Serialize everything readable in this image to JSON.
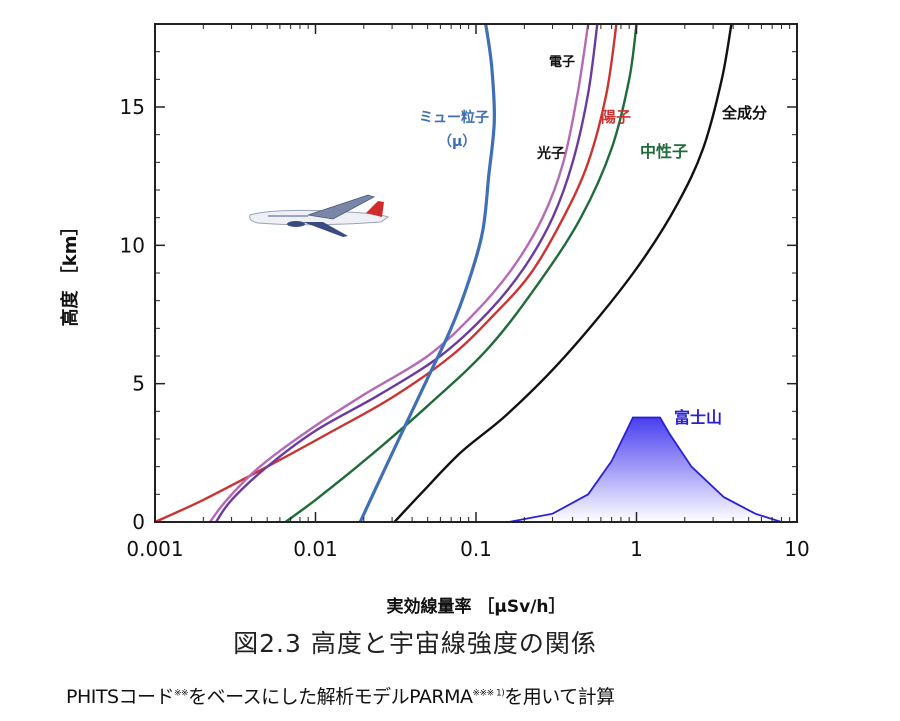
{
  "chart_data": {
    "type": "line",
    "title": "図2.3 高度と宇宙線強度の関係",
    "xlabel": "実効線量率 ［μSv/h］",
    "ylabel": "高度 ［km］",
    "xscale": "log",
    "xlim": [
      0.001,
      10
    ],
    "ylim": [
      0,
      18
    ],
    "x_tick_labels": [
      "0.001",
      "0.01",
      "0.1",
      "1",
      "10"
    ],
    "x_tick_values": [
      0.001,
      0.01,
      0.1,
      1,
      10
    ],
    "y_tick_labels": [
      "0",
      "5",
      "10",
      "15"
    ],
    "y_tick_values": [
      0,
      5,
      10,
      15
    ],
    "series": [
      {
        "name": "全成分",
        "color": "#111111",
        "x": [
          0.031,
          0.045,
          0.08,
          0.15,
          0.3,
          0.6,
          1.1,
          1.8,
          2.6,
          3.4,
          3.9
        ],
        "y": [
          0,
          1.0,
          2.5,
          3.8,
          5.5,
          7.5,
          9.5,
          11.5,
          13.5,
          16.0,
          18.0
        ]
      },
      {
        "name": "中性子",
        "color": "#1f6b3a",
        "x": [
          0.0065,
          0.01,
          0.02,
          0.05,
          0.12,
          0.25,
          0.45,
          0.7,
          0.9,
          1.0
        ],
        "y": [
          0,
          0.8,
          2.2,
          4.2,
          6.3,
          8.7,
          11.0,
          13.5,
          16.0,
          18.0
        ]
      },
      {
        "name": "陽子",
        "color": "#cc3333",
        "x": [
          0.001,
          0.002,
          0.005,
          0.012,
          0.03,
          0.07,
          0.13,
          0.22,
          0.35,
          0.5,
          0.65,
          0.75
        ],
        "y": [
          0,
          0.8,
          2.0,
          3.2,
          4.5,
          6.0,
          7.5,
          9.0,
          11.0,
          13.0,
          15.5,
          18.0
        ]
      },
      {
        "name": "電子",
        "color": "#6b3aa0",
        "x": [
          0.0024,
          0.003,
          0.005,
          0.01,
          0.025,
          0.06,
          0.12,
          0.2,
          0.3,
          0.4,
          0.5,
          0.57
        ],
        "y": [
          0,
          0.8,
          2.0,
          3.3,
          4.6,
          6.0,
          7.6,
          9.2,
          11.0,
          13.0,
          15.5,
          18.0
        ]
      },
      {
        "name": "光子",
        "color": "#b56ab5",
        "x": [
          0.0022,
          0.0028,
          0.0045,
          0.009,
          0.02,
          0.05,
          0.1,
          0.17,
          0.26,
          0.35,
          0.43,
          0.5
        ],
        "y": [
          0,
          0.8,
          2.0,
          3.3,
          4.6,
          6.0,
          7.6,
          9.2,
          11.0,
          13.0,
          15.5,
          18.0
        ]
      },
      {
        "name": "ミュー粒子（μ）",
        "color": "#3f6fb5",
        "x": [
          0.019,
          0.025,
          0.035,
          0.05,
          0.07,
          0.09,
          0.11,
          0.12,
          0.13,
          0.125,
          0.115
        ],
        "y": [
          0,
          1.5,
          3.3,
          5.2,
          7.0,
          8.7,
          10.5,
          12.5,
          14.5,
          16.5,
          18.0
        ]
      }
    ],
    "mountain": {
      "name": "富士山",
      "color": "#2a1fd6",
      "x": [
        0.16,
        0.3,
        0.5,
        0.7,
        0.85,
        0.95,
        1.4,
        1.6,
        2.2,
        3.5,
        5.5,
        8.0
      ],
      "y": [
        0,
        0.3,
        1.0,
        2.2,
        3.2,
        3.776,
        3.776,
        3.2,
        2.0,
        0.9,
        0.3,
        0
      ]
    }
  },
  "labels": {
    "total": "全成分",
    "neutron": "中性子",
    "proton": "陽子",
    "electron": "電子",
    "photon": "光子",
    "muon_line1": "ミュー粒子",
    "muon_line2": "（μ）",
    "fuji": "富士山"
  },
  "caption": "図2.3  高度と宇宙線強度の関係",
  "note_prefix": "PHITSコード",
  "note_sup1": "※※",
  "note_mid": "をベースにした解析モデルPARMA",
  "note_sup2": "※※※ 1)",
  "note_suffix": "を用いて計算"
}
